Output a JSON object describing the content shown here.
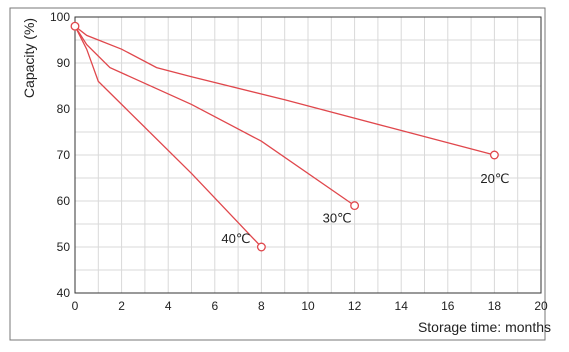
{
  "chart_data": {
    "type": "line",
    "xlabel": "Storage time: months",
    "ylabel": "Capacity (%)",
    "xlim": [
      0,
      20
    ],
    "ylim": [
      40,
      100
    ],
    "x_ticks": [
      "0",
      "2",
      "4",
      "6",
      "8",
      "10",
      "12",
      "14",
      "16",
      "18",
      "20"
    ],
    "y_ticks": [
      "100",
      "90",
      "80",
      "70",
      "60",
      "50",
      "40"
    ],
    "grid": true,
    "series": [
      {
        "name": "20℃",
        "points": [
          [
            0,
            98
          ],
          [
            0.5,
            96
          ],
          [
            2,
            93
          ],
          [
            3.5,
            89
          ],
          [
            5,
            87
          ],
          [
            9,
            82
          ],
          [
            18,
            70
          ]
        ]
      },
      {
        "name": "30℃",
        "points": [
          [
            0,
            98
          ],
          [
            0.5,
            94
          ],
          [
            1.5,
            89
          ],
          [
            5,
            81
          ],
          [
            8,
            73
          ],
          [
            12,
            59
          ]
        ]
      },
      {
        "name": "40℃",
        "points": [
          [
            0,
            98
          ],
          [
            0.5,
            93
          ],
          [
            1,
            86
          ],
          [
            3,
            76
          ],
          [
            5,
            66
          ],
          [
            8,
            50
          ]
        ]
      }
    ],
    "colors": {
      "series": "#e0474c",
      "grid": "#d9d9d9",
      "axis": "#333333"
    }
  }
}
